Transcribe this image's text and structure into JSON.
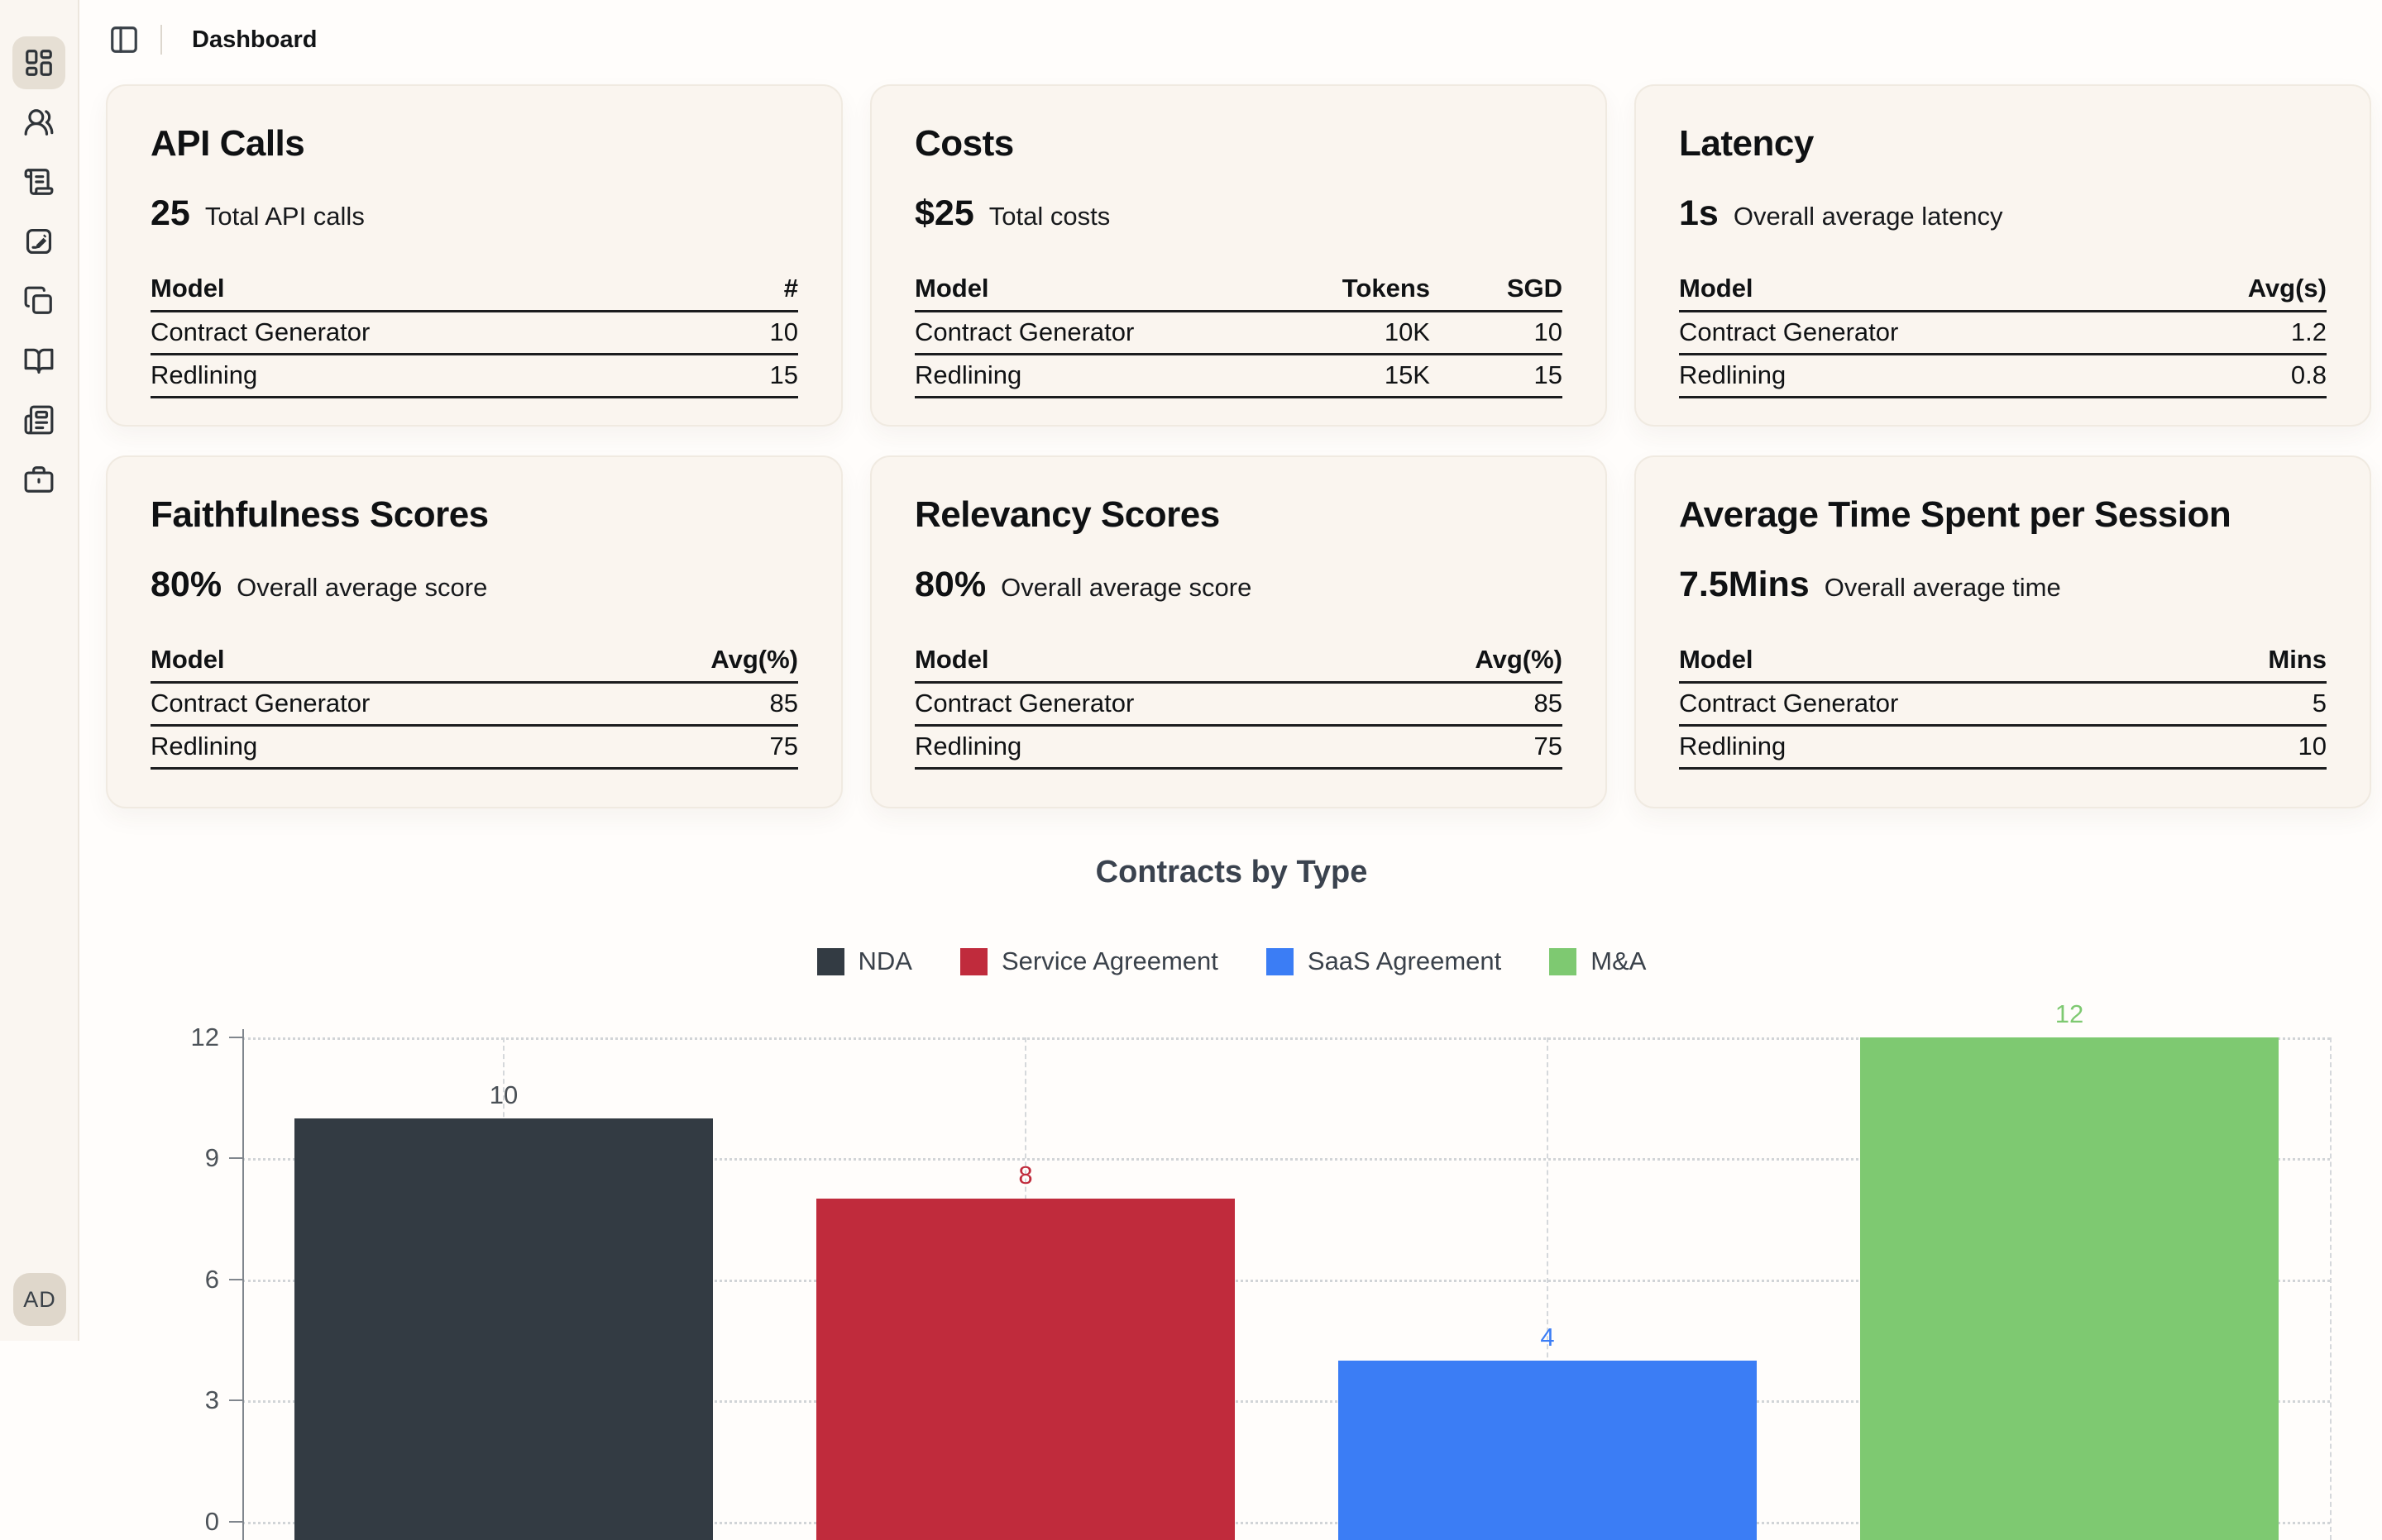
{
  "header": {
    "title": "Dashboard"
  },
  "sidebar": {
    "items": [
      {
        "icon": "layout-dashboard",
        "active": true
      },
      {
        "icon": "users",
        "active": false
      },
      {
        "icon": "scroll-text",
        "active": false
      },
      {
        "icon": "pen-square",
        "active": false
      },
      {
        "icon": "copy",
        "active": false
      },
      {
        "icon": "book-open",
        "active": false
      },
      {
        "icon": "newspaper",
        "active": false
      },
      {
        "icon": "briefcase",
        "active": false
      }
    ],
    "avatar_initials": "AD"
  },
  "cards": [
    {
      "title": "API Calls",
      "metric": "25",
      "metric_label": "Total API calls",
      "columns": [
        "Model",
        "#"
      ],
      "rows": [
        [
          "Contract Generator",
          "10"
        ],
        [
          "Redlining",
          "15"
        ]
      ]
    },
    {
      "title": "Costs",
      "metric": "$25",
      "metric_label": "Total costs",
      "columns": [
        "Model",
        "Tokens",
        "SGD"
      ],
      "rows": [
        [
          "Contract Generator",
          "10K",
          "10"
        ],
        [
          "Redlining",
          "15K",
          "15"
        ]
      ]
    },
    {
      "title": "Latency",
      "metric": "1s",
      "metric_label": "Overall average latency",
      "columns": [
        "Model",
        "Avg(s)"
      ],
      "rows": [
        [
          "Contract Generator",
          "1.2"
        ],
        [
          "Redlining",
          "0.8"
        ]
      ]
    },
    {
      "title": "Faithfulness Scores",
      "metric": "80%",
      "metric_label": "Overall average score",
      "columns": [
        "Model",
        "Avg(%)"
      ],
      "rows": [
        [
          "Contract Generator",
          "85"
        ],
        [
          "Redlining",
          "75"
        ]
      ]
    },
    {
      "title": "Relevancy Scores",
      "metric": "80%",
      "metric_label": "Overall average score",
      "columns": [
        "Model",
        "Avg(%)"
      ],
      "rows": [
        [
          "Contract Generator",
          "85"
        ],
        [
          "Redlining",
          "75"
        ]
      ]
    },
    {
      "title": "Average Time Spent per Session",
      "metric": "7.5Mins",
      "metric_label": "Overall average time",
      "columns": [
        "Model",
        "Mins"
      ],
      "rows": [
        [
          "Contract Generator",
          "5"
        ],
        [
          "Redlining",
          "10"
        ]
      ]
    }
  ],
  "chart_data": {
    "type": "bar",
    "title": "Contracts by Type",
    "categories": [
      "NDA",
      "Service Agreement",
      "SaaS Agreement",
      "M&A"
    ],
    "values": [
      10,
      8,
      4,
      12
    ],
    "colors": [
      "#333B43",
      "#C02B3C",
      "#3B7DF5",
      "#7EC971"
    ],
    "label_colors": [
      "#4A5056",
      "#C02B3C",
      "#3B7DF5",
      "#7EC971"
    ],
    "xlabel": "",
    "ylabel": "",
    "ylim": [
      0,
      12
    ],
    "yticks": [
      0,
      3,
      6,
      9,
      12
    ],
    "grid": true,
    "legend_position": "top",
    "value_labels": true
  }
}
